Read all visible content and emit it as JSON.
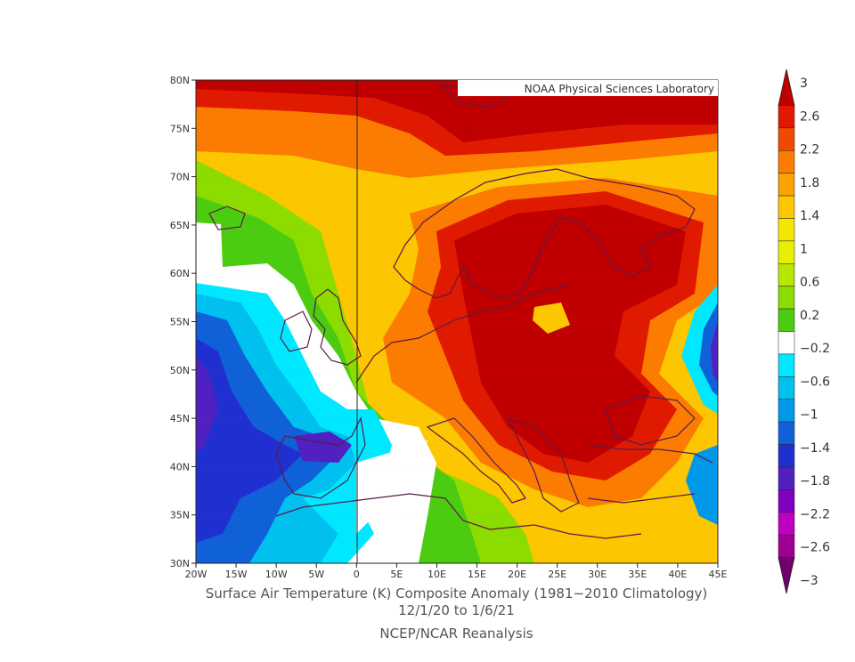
{
  "map": {
    "credit": "NOAA Physical Sciences Laboratory",
    "lat_labels": [
      "80N",
      "75N",
      "70N",
      "65N",
      "60N",
      "55N",
      "50N",
      "45N",
      "40N",
      "35N",
      "30N"
    ],
    "lon_labels": [
      "20W",
      "15W",
      "10W",
      "5W",
      "0",
      "5E",
      "10E",
      "15E",
      "20E",
      "25E",
      "30E",
      "35E",
      "40E",
      "45E"
    ],
    "extent": {
      "lon": [
        -20,
        45
      ],
      "lat": [
        30,
        80
      ]
    }
  },
  "colorbar": {
    "labels": [
      "3",
      "2.6",
      "2.2",
      "1.8",
      "1.4",
      "1",
      "0.6",
      "0.2",
      "-0.2",
      "-0.6",
      "-1",
      "-1.4",
      "-1.8",
      "-2.2",
      "-2.6",
      "-3"
    ],
    "colors": [
      "#c00000",
      "#e01a00",
      "#f04a00",
      "#fb7c00",
      "#fba100",
      "#fcc600",
      "#f5e600",
      "#e6f000",
      "#b8e600",
      "#8cdc00",
      "#4ccc10",
      "#ffffff",
      "#00e8ff",
      "#00c0f0",
      "#0098e8",
      "#1060d8",
      "#2030d0",
      "#5020c0",
      "#8000c0",
      "#c000c0",
      "#a00090",
      "#70006a"
    ]
  },
  "title": "Surface Air Temperature (K) Composite Anomaly (1981−2010 Climatology)",
  "date_range": "12/1/20   to 1/6/21",
  "source": "NCEP/NCAR Reanalysis"
}
